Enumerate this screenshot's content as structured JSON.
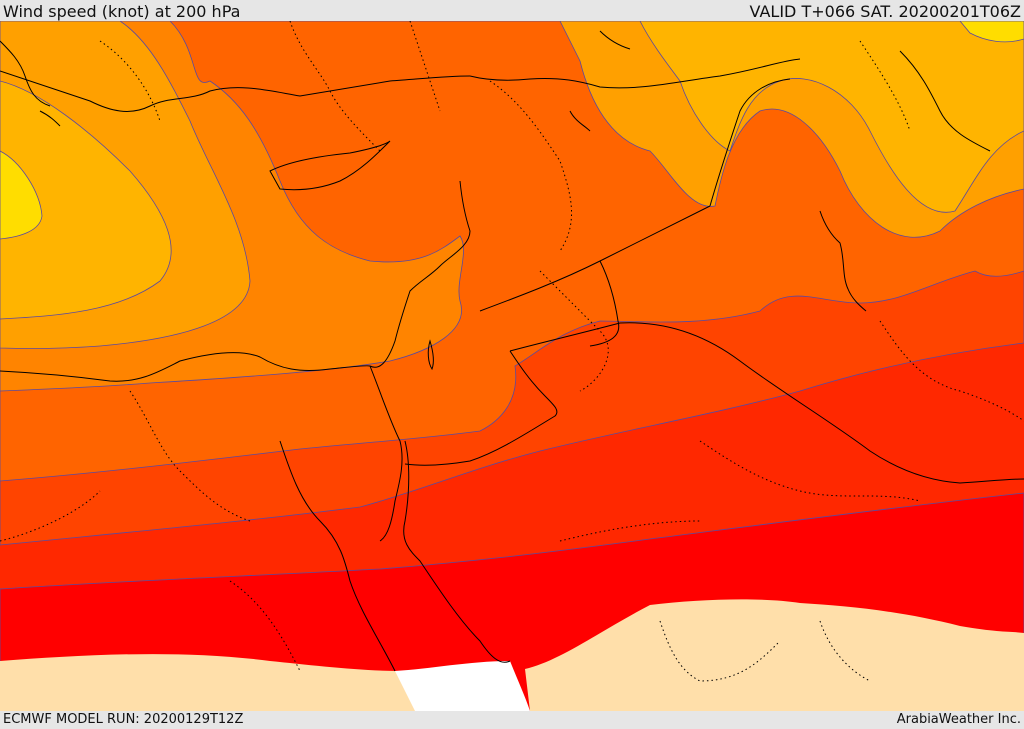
{
  "header": {
    "title": "Wind speed (knot) at 200 hPa",
    "valid_time": "VALID T+066 SAT. 20200201T06Z"
  },
  "footer": {
    "model_run": "ECMWF MODEL RUN: 20200129T12Z",
    "credit": "ArabiaWeather Inc."
  },
  "colors": {
    "band_yellow": "#ffdd00",
    "band_gold": "#ffb400",
    "band_lightorange": "#ffa000",
    "band_orange": "#ff8400",
    "band_darkorange": "#ff6400",
    "band_redorange": "#ff4400",
    "band_orangered": "#ff2800",
    "band_red": "#ff0000",
    "land_masked": "#ffdfaa",
    "no_data": "#ffffff",
    "contour_line": "#5a4aa0",
    "border_line": "#000000"
  }
}
